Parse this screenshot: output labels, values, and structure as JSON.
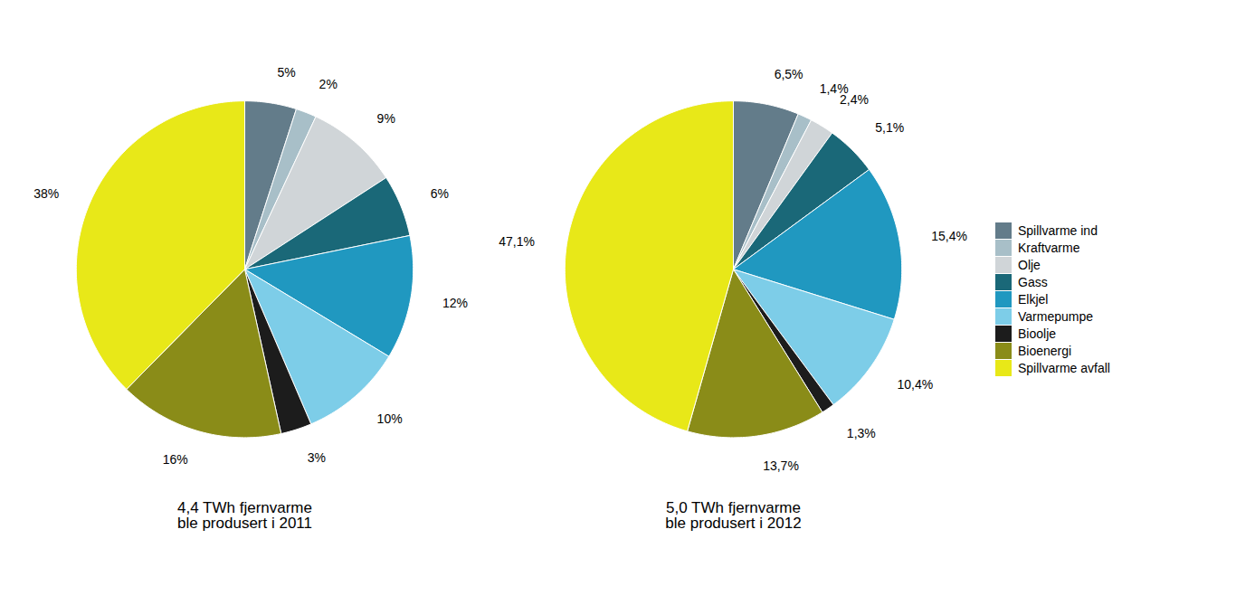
{
  "chart_data": [
    {
      "type": "pie",
      "title": "4,4 TWh fjernvarme\nble produsert i 2011",
      "categories": [
        "Spillvarme ind",
        "Kraftvarme",
        "Olje",
        "Gass",
        "Elkjel",
        "Varmepumpe",
        "Bioolje",
        "Bioenergi",
        "Spillvarme avfall"
      ],
      "values": [
        5,
        2,
        9,
        6,
        12,
        10,
        3,
        16,
        38
      ],
      "value_labels": [
        "5%",
        "2%",
        "9%",
        "6%",
        "12%",
        "10%",
        "3%",
        "16%",
        "38%"
      ],
      "data_labels": true,
      "colors": [
        "#637c8a",
        "#a8bfc8",
        "#d0d5d8",
        "#1a6878",
        "#2098c0",
        "#7dcde8",
        "#1c1c1c",
        "#8a8c18",
        "#e8e818"
      ],
      "legend": "right"
    },
    {
      "type": "pie",
      "title": "5,0 TWh fjernvarme\nble produsert i 2012",
      "categories": [
        "Spillvarme ind",
        "Kraftvarme",
        "Olje",
        "Gass",
        "Elkjel",
        "Varmepumpe",
        "Bioolje",
        "Bioenergi",
        "Spillvarme avfall"
      ],
      "values": [
        6.5,
        1.4,
        2.4,
        5.1,
        15.4,
        10.4,
        1.3,
        13.7,
        47.1
      ],
      "value_labels": [
        "6,5%",
        "1,4%",
        "2,4%",
        "5,1%",
        "15,4%",
        "10,4%",
        "1,3%",
        "13,7%",
        "47,1%"
      ],
      "data_labels": true,
      "colors": [
        "#637c8a",
        "#a8bfc8",
        "#d0d5d8",
        "#1a6878",
        "#2098c0",
        "#7dcde8",
        "#1c1c1c",
        "#8a8c18",
        "#e8e818"
      ],
      "legend": "right"
    }
  ]
}
